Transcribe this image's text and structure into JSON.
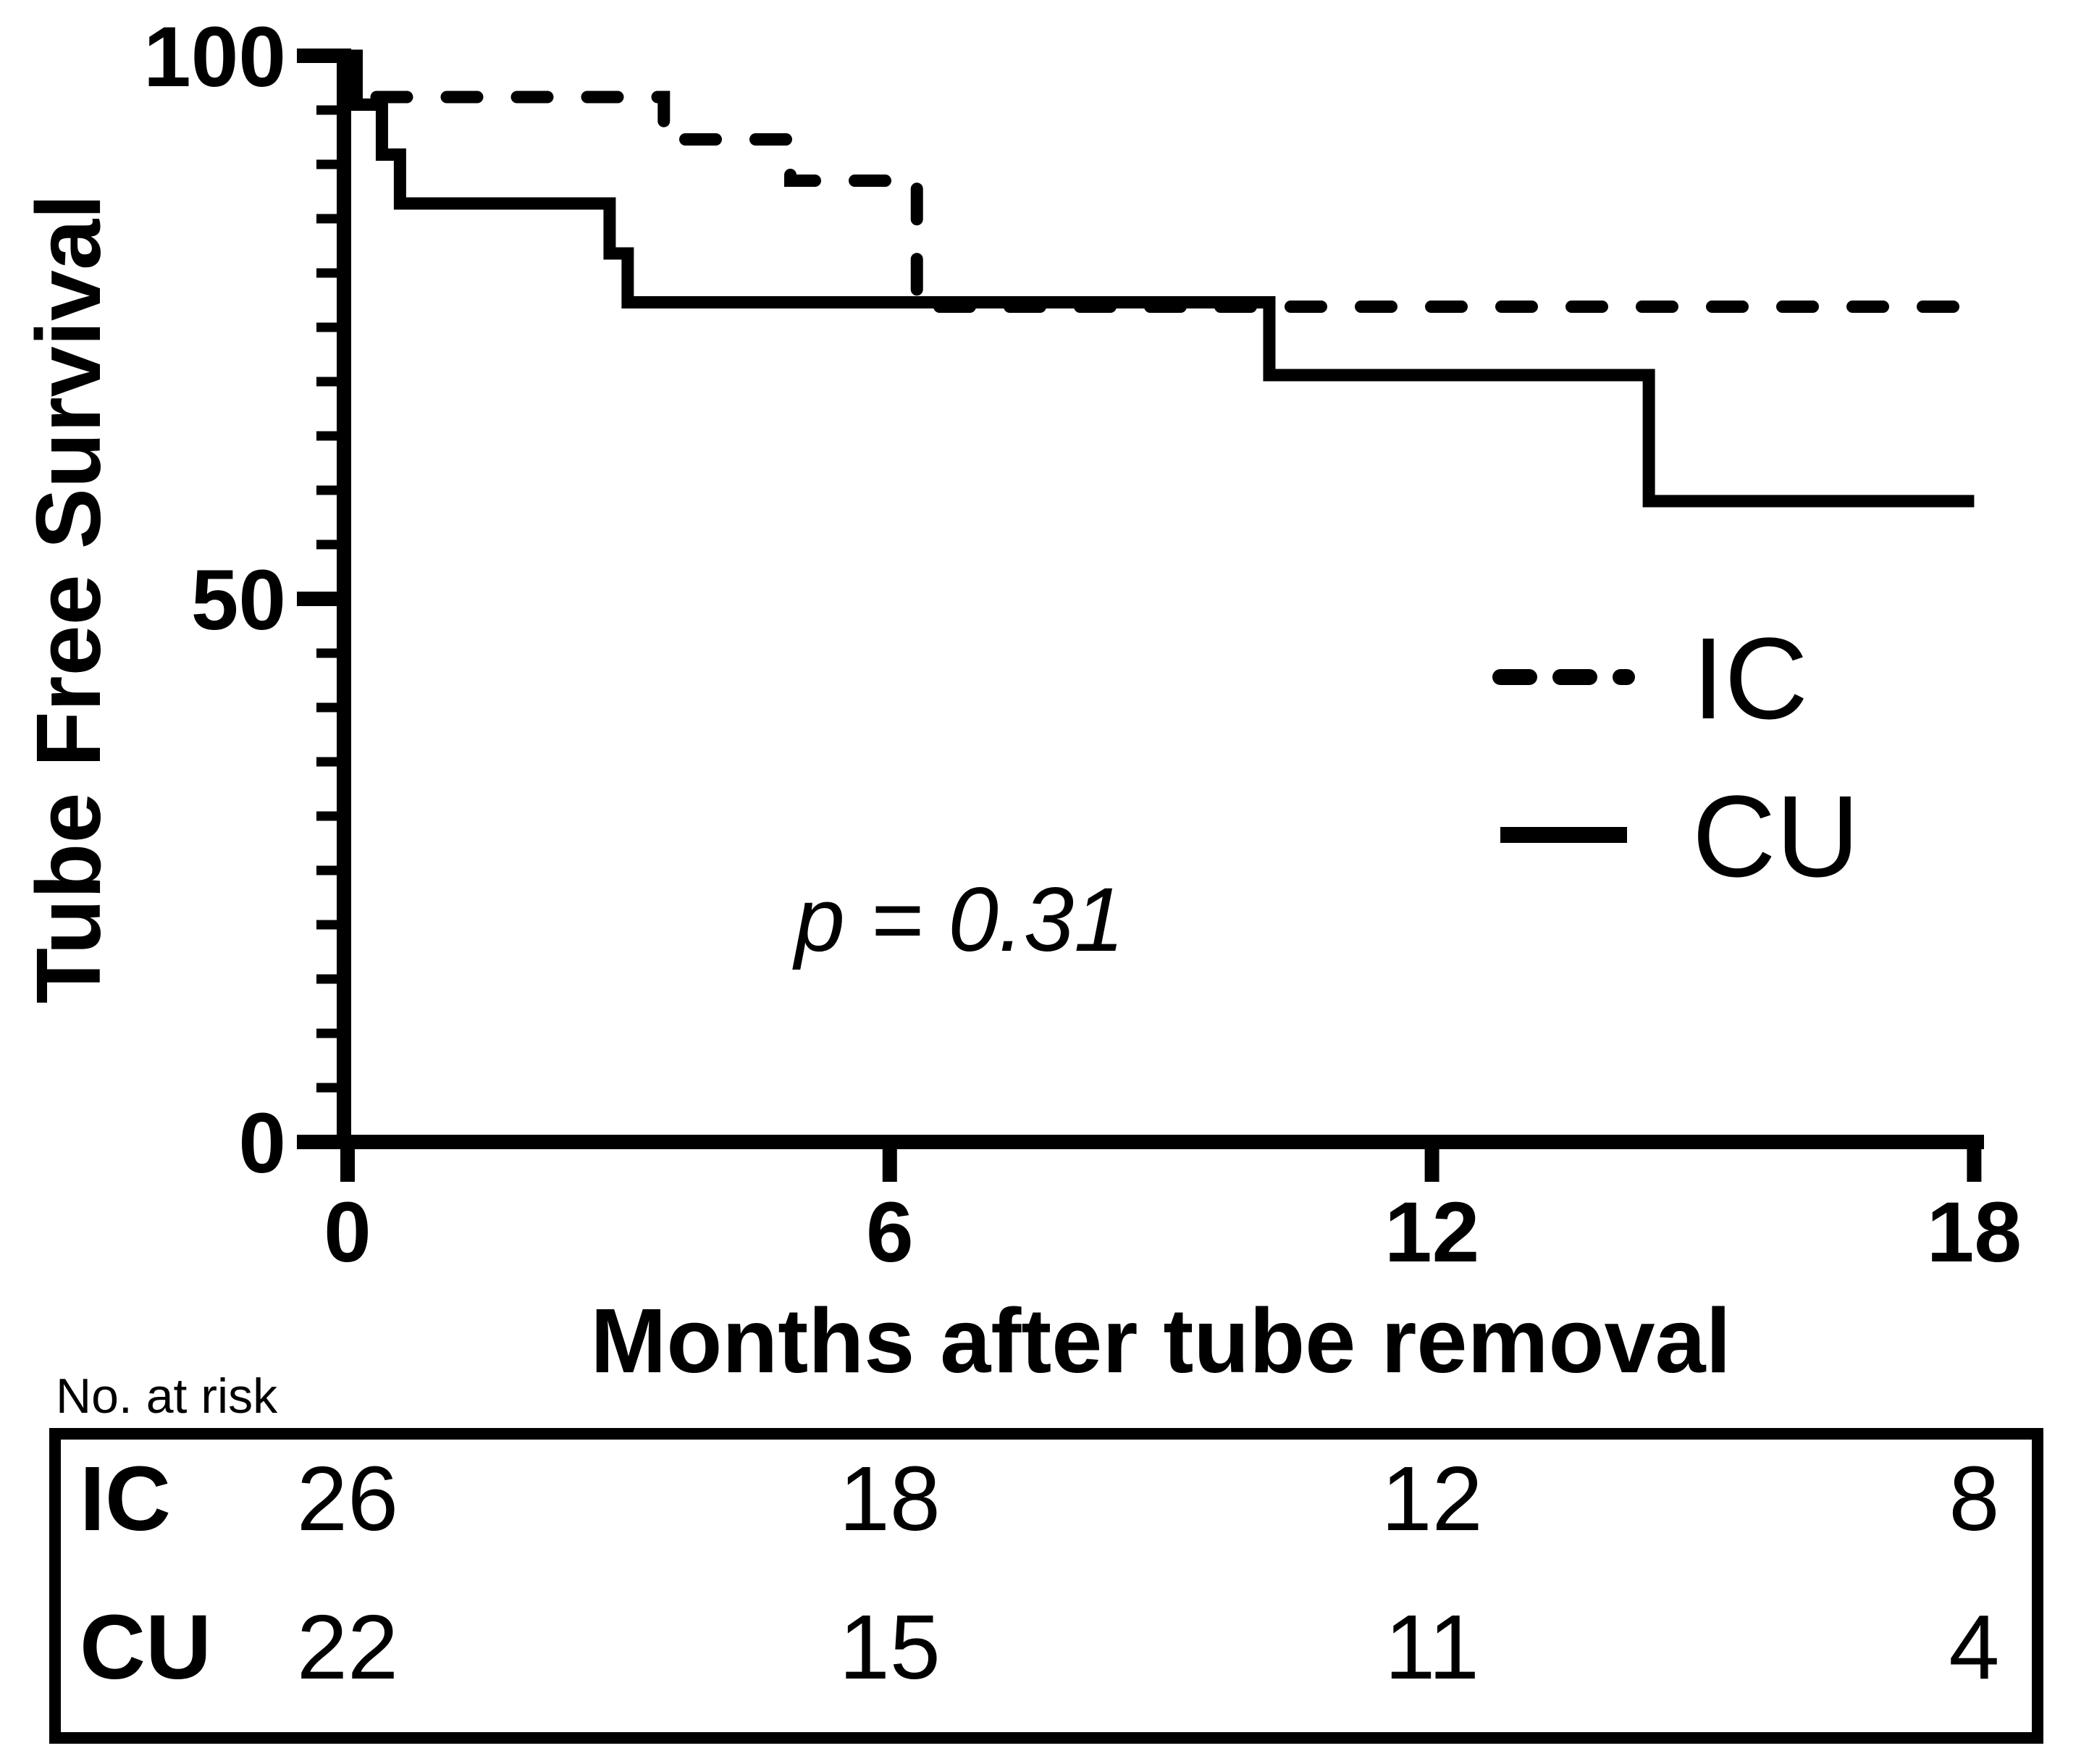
{
  "figure": {
    "background_color": "#ffffff",
    "ink_color": "#000000"
  },
  "chart_data": {
    "type": "line",
    "subtype": "kaplan-meier-step",
    "title": "",
    "xlabel": "Months after tube removal",
    "ylabel": "Tube Free Survival",
    "xlim": [
      0,
      18
    ],
    "ylim": [
      0,
      100
    ],
    "x_ticks": [
      0,
      6,
      12,
      18
    ],
    "y_ticks": [
      100,
      50,
      0
    ],
    "y_minor_tick_step": 5,
    "grid": false,
    "legend_position": "right-middle",
    "annotation": "p = 0.31",
    "legend": [
      {
        "label": "IC",
        "line_style": "dashed"
      },
      {
        "label": "CU",
        "line_style": "solid"
      }
    ],
    "series": [
      {
        "name": "IC",
        "line_style": "dashed",
        "steps": [
          [
            0,
            100
          ],
          [
            0.1,
            96.2
          ],
          [
            3.5,
            92.3
          ],
          [
            4.9,
            88.5
          ],
          [
            6.3,
            76.9
          ],
          [
            18,
            76.9
          ]
        ]
      },
      {
        "name": "CU",
        "line_style": "solid",
        "steps": [
          [
            0,
            100
          ],
          [
            0.1,
            95.5
          ],
          [
            0.38,
            90.9
          ],
          [
            0.58,
            86.4
          ],
          [
            2.9,
            81.8
          ],
          [
            3.1,
            77.3
          ],
          [
            10.2,
            70.6
          ],
          [
            14.4,
            59
          ],
          [
            18,
            59
          ]
        ]
      }
    ]
  },
  "risk_table": {
    "heading": "No. at risk",
    "time_points": [
      0,
      6,
      12,
      18
    ],
    "rows": [
      {
        "label": "IC",
        "counts": [
          26,
          18,
          12,
          8
        ]
      },
      {
        "label": "CU",
        "counts": [
          22,
          15,
          11,
          4
        ]
      }
    ]
  }
}
